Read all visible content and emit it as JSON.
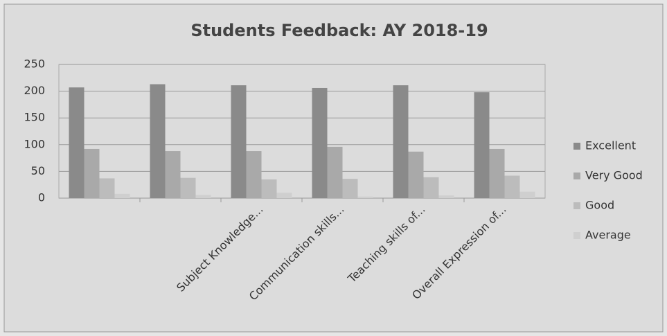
{
  "chart_data": {
    "type": "bar",
    "title": "Students Feedback: AY 2018-19",
    "categories": [
      null,
      null,
      "Subject Knowledge...",
      "Communication skills...",
      "Teaching skills of...",
      "Overall Expression of..."
    ],
    "series": [
      {
        "name": "Excellent",
        "color": "#8a8a8a",
        "values": [
          207,
          213,
          211,
          206,
          211,
          198
        ]
      },
      {
        "name": "Very Good",
        "color": "#a9a9a9",
        "values": [
          92,
          88,
          88,
          96,
          87,
          92
        ]
      },
      {
        "name": "Good",
        "color": "#bcbcbc",
        "values": [
          37,
          38,
          35,
          36,
          39,
          42
        ]
      },
      {
        "name": "Average",
        "color": "#cfcfcf",
        "values": [
          8,
          6,
          10,
          3,
          5,
          12
        ]
      }
    ],
    "ylim": [
      0,
      250
    ],
    "yticks": [
      0,
      50,
      100,
      150,
      200,
      250
    ],
    "grid": true,
    "legend": "right"
  }
}
